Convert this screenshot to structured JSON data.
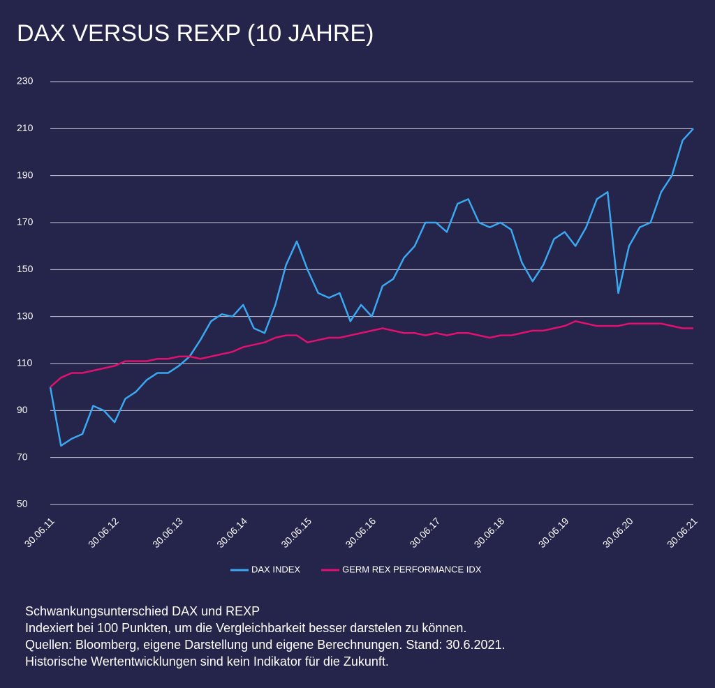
{
  "chart_data": {
    "type": "line",
    "title": "DAX VERSUS REXP (10 JAHRE)",
    "categories": [
      "30.06.11",
      null,
      null,
      null,
      null,
      null,
      "30.06.12",
      null,
      null,
      null,
      null,
      null,
      "30.06.13",
      null,
      null,
      null,
      null,
      null,
      "30.06.14",
      null,
      null,
      null,
      null,
      null,
      "30.06.15",
      null,
      null,
      null,
      null,
      null,
      "30.06.16",
      null,
      null,
      null,
      null,
      null,
      "30.06.17",
      null,
      null,
      null,
      null,
      null,
      "30.06.18",
      null,
      null,
      null,
      null,
      null,
      "30.06.19",
      null,
      null,
      null,
      null,
      null,
      "30.06.20",
      null,
      null,
      null,
      null,
      null,
      "30.06.21"
    ],
    "series": [
      {
        "name": "DAX INDEX",
        "color": "#3ba8f2",
        "values": [
          100,
          75,
          78,
          80,
          92,
          90,
          85,
          95,
          98,
          103,
          106,
          106,
          109,
          113,
          120,
          128,
          131,
          130,
          135,
          125,
          123,
          135,
          152,
          162,
          150,
          140,
          138,
          140,
          128,
          135,
          130,
          143,
          146,
          155,
          160,
          170,
          170,
          166,
          178,
          180,
          170,
          168,
          170,
          167,
          153,
          145,
          152,
          163,
          166,
          160,
          168,
          180,
          183,
          140,
          160,
          168,
          170,
          183,
          190,
          205,
          210
        ]
      },
      {
        "name": "GERM REX PERFORMANCE IDX",
        "color": "#e0116f",
        "values": [
          100,
          104,
          106,
          106,
          107,
          108,
          109,
          111,
          111,
          111,
          112,
          112,
          113,
          113,
          112,
          113,
          114,
          115,
          117,
          118,
          119,
          121,
          122,
          122,
          119,
          120,
          121,
          121,
          122,
          123,
          124,
          125,
          124,
          123,
          123,
          122,
          123,
          122,
          123,
          123,
          122,
          121,
          122,
          122,
          123,
          124,
          124,
          125,
          126,
          128,
          127,
          126,
          126,
          126,
          127,
          127,
          127,
          127,
          126,
          125,
          125
        ]
      }
    ],
    "ylim": [
      50,
      230
    ],
    "yticks": [
      50,
      70,
      90,
      110,
      130,
      150,
      170,
      190,
      210,
      230
    ],
    "grid": true,
    "legend": "bottom"
  },
  "notes": [
    "Schwankungsunterschied DAX und REXP",
    "Indexiert bei 100 Punkten, um die Vergleichbarkeit besser darstelen zu können.",
    "Quellen: Bloomberg, eigene Darstellung und eigene Berechnungen. Stand: 30.6.2021.",
    "Historische Wertentwicklungen sind kein Indikator für die Zukunft."
  ]
}
